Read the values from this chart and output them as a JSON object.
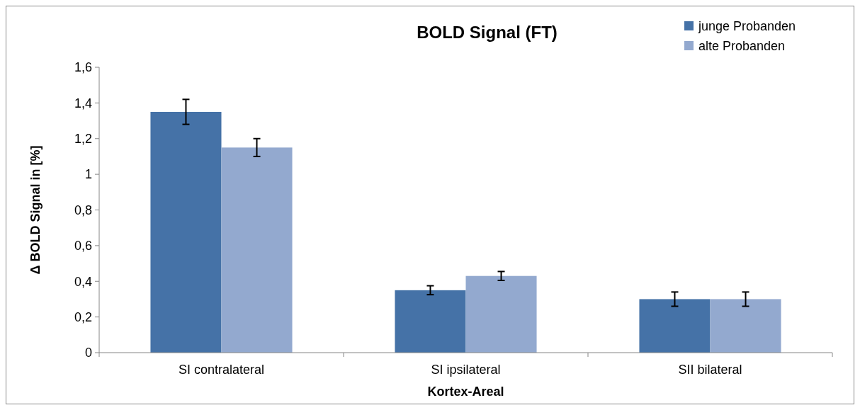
{
  "chart_data": {
    "type": "bar",
    "title": "BOLD Signal (FT)",
    "xlabel": "Kortex-Areal",
    "ylabel": "Δ BOLD Signal in [%]",
    "categories": [
      "SI contralateral",
      "SI ipsilateral",
      "SII bilateral"
    ],
    "series": [
      {
        "name": "junge Probanden",
        "color": "#4572a7",
        "values": [
          1.35,
          0.35,
          0.3
        ],
        "errors": [
          0.07,
          0.025,
          0.04
        ]
      },
      {
        "name": "alte Probanden",
        "color": "#93a9cf",
        "values": [
          1.15,
          0.43,
          0.3
        ],
        "errors": [
          0.05,
          0.025,
          0.04
        ]
      }
    ],
    "ylim": [
      0,
      1.6
    ],
    "yticks": [
      {
        "value": 0,
        "label": "0"
      },
      {
        "value": 0.2,
        "label": "0,2"
      },
      {
        "value": 0.4,
        "label": "0,4"
      },
      {
        "value": 0.6,
        "label": "0,6"
      },
      {
        "value": 0.8,
        "label": "0,8"
      },
      {
        "value": 1,
        "label": "1"
      },
      {
        "value": 1.2,
        "label": "1,2"
      },
      {
        "value": 1.4,
        "label": "1,4"
      },
      {
        "value": 1.6,
        "label": "1,6"
      }
    ],
    "legend": "top right",
    "grid": false
  }
}
